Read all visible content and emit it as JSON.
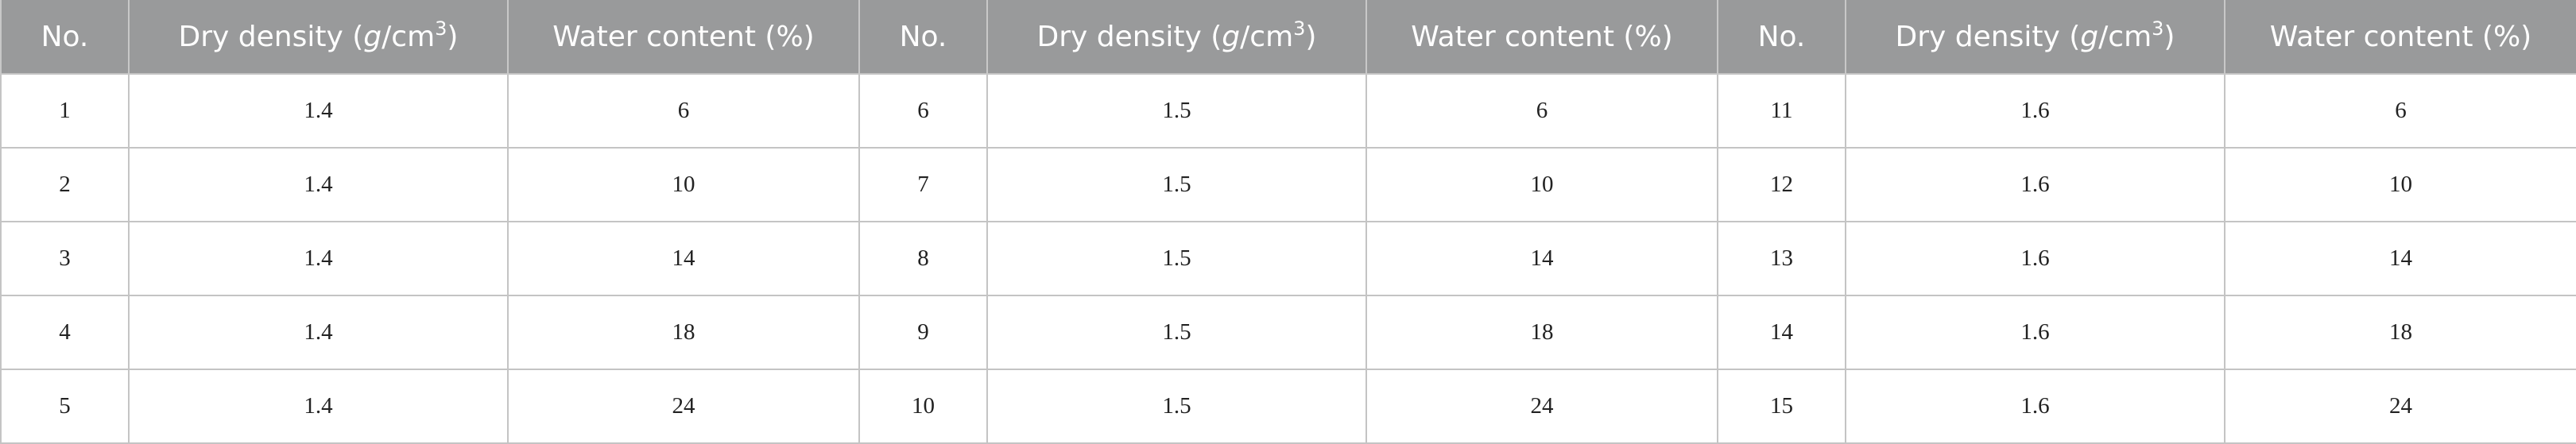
{
  "table": {
    "header": [
      "No.",
      {
        "before": "Dry density (",
        "italic": "g",
        "middle": "/cm",
        "superscript": "3",
        "after": ")"
      },
      "Water content (%)",
      "No.",
      {
        "before": "Dry density (",
        "italic": "g",
        "middle": "/cm",
        "superscript": "3",
        "after": ")"
      },
      "Water content (%)",
      "No.",
      {
        "before": "Dry density (",
        "italic": "g",
        "middle": "/cm",
        "superscript": "3",
        "after": ")"
      },
      "Water content (%)"
    ],
    "rows": [
      [
        1,
        1.4,
        6,
        6,
        1.5,
        6,
        11,
        1.6,
        6
      ],
      [
        2,
        1.4,
        10,
        7,
        1.5,
        10,
        12,
        1.6,
        10
      ],
      [
        3,
        1.4,
        14,
        8,
        1.5,
        14,
        13,
        1.6,
        14
      ],
      [
        4,
        1.4,
        18,
        9,
        1.5,
        18,
        14,
        1.6,
        18
      ],
      [
        5,
        1.4,
        24,
        10,
        1.5,
        24,
        15,
        1.6,
        24
      ]
    ]
  }
}
